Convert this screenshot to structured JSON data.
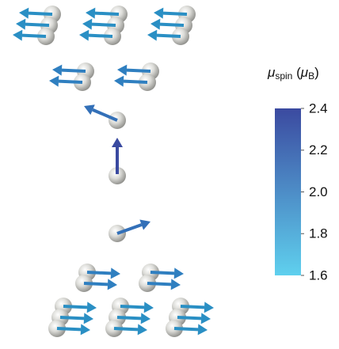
{
  "colorbar": {
    "label_parts": [
      "μ",
      "spin",
      " (",
      "μ",
      "B",
      ")"
    ],
    "range": [
      1.6,
      2.4
    ],
    "ticks": [
      2.4,
      2.2,
      {
        "value": 2.0,
        "label": "2.0"
      },
      1.8,
      1.6
    ],
    "colors": [
      "#5fd0ee",
      "#3b4aa0"
    ]
  }
}
